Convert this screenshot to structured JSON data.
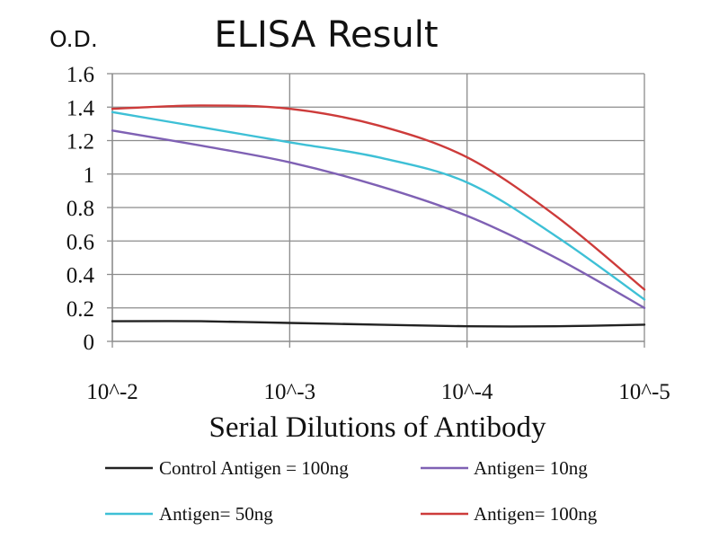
{
  "chart_data": {
    "type": "line",
    "title": "ELISA Result",
    "ylabel": "O.D.",
    "xlabel": "Serial Dilutions of Antibody",
    "categories": [
      "10^-2",
      "10^-3",
      "10^-4",
      "10^-5"
    ],
    "yticks": [
      "0",
      "0.2",
      "0.4",
      "0.6",
      "0.8",
      "1",
      "1.2",
      "1.4",
      "1.6"
    ],
    "ylim": [
      0,
      1.6
    ],
    "grid": true,
    "legend_position": "bottom",
    "series": [
      {
        "name": "Control Antigen = 100ng",
        "color": "#222222",
        "x": [
          0,
          0.5,
          1,
          1.5,
          2,
          2.5,
          3
        ],
        "values": [
          0.12,
          0.12,
          0.11,
          0.1,
          0.09,
          0.09,
          0.1
        ]
      },
      {
        "name": "Antigen= 10ng",
        "color": "#7f61b4",
        "x": [
          0,
          0.5,
          1,
          1.5,
          2,
          2.5,
          3
        ],
        "values": [
          1.26,
          1.17,
          1.07,
          0.93,
          0.75,
          0.5,
          0.2
        ]
      },
      {
        "name": "Antigen= 50ng",
        "color": "#3ec0d6",
        "x": [
          0,
          0.5,
          1,
          1.5,
          2,
          2.5,
          3
        ],
        "values": [
          1.37,
          1.28,
          1.19,
          1.1,
          0.95,
          0.63,
          0.25
        ]
      },
      {
        "name": "Antigen= 100ng",
        "color": "#cd3b3a",
        "x": [
          0,
          0.5,
          1,
          1.5,
          2,
          2.5,
          3
        ],
        "values": [
          1.39,
          1.41,
          1.39,
          1.29,
          1.1,
          0.75,
          0.31
        ]
      }
    ]
  }
}
